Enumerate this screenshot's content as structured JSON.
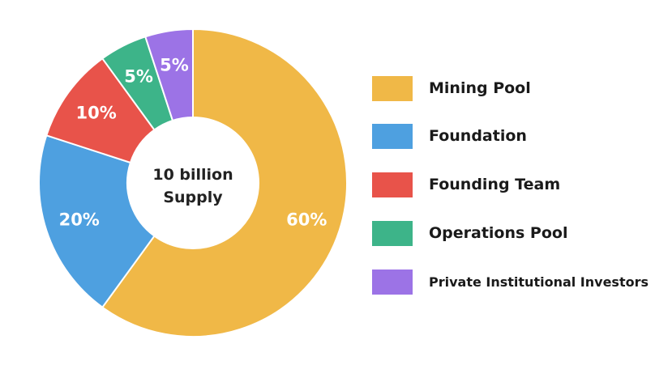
{
  "chart_data": {
    "type": "pie",
    "variant": "donut",
    "center_label": [
      "10 billion",
      "Supply"
    ],
    "legend_position": "right",
    "slices": [
      {
        "name": "Mining Pool",
        "value": 60,
        "label": "60%",
        "color": "#F0B847"
      },
      {
        "name": "Foundation",
        "value": 20,
        "label": "20%",
        "color": "#4EA0E0"
      },
      {
        "name": "Founding Team",
        "value": 10,
        "label": "10%",
        "color": "#E8534A"
      },
      {
        "name": "Operations Pool",
        "value": 5,
        "label": "5%",
        "color": "#3DB489"
      },
      {
        "name": "Private Institutional Investors",
        "value": 5,
        "label": "5%",
        "color": "#9C73E6"
      }
    ]
  }
}
